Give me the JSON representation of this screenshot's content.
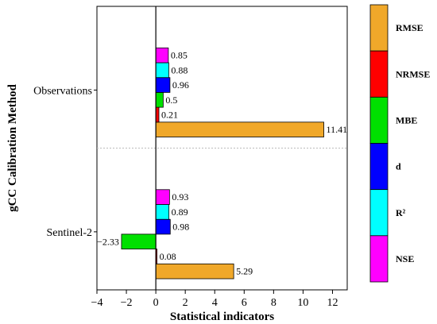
{
  "chart_data": {
    "type": "bar",
    "orientation": "horizontal",
    "categories": [
      "Observations",
      "Sentinel-2"
    ],
    "series": [
      {
        "name": "NSE",
        "color": "#ff00ff",
        "values": [
          0.85,
          0.93
        ],
        "labels": [
          "0.85",
          "0.93"
        ]
      },
      {
        "name": "R²",
        "color": "#00ffff",
        "values": [
          0.88,
          0.89
        ],
        "labels": [
          "0.88",
          "0.89"
        ]
      },
      {
        "name": "d",
        "color": "#0000ff",
        "values": [
          0.96,
          0.98
        ],
        "labels": [
          "0.96",
          "0.98"
        ]
      },
      {
        "name": "MBE",
        "color": "#00e000",
        "values": [
          0.5,
          -2.33
        ],
        "labels": [
          "0.5",
          "−2.33"
        ]
      },
      {
        "name": "NRMSE",
        "color": "#ff0000",
        "values": [
          0.21,
          0.08
        ],
        "labels": [
          "0.21",
          "0.08"
        ]
      },
      {
        "name": "RMSE",
        "color": "#f0a82a",
        "values": [
          11.41,
          5.29
        ],
        "labels": [
          "11.41",
          "5.29"
        ]
      }
    ],
    "xlabel": "Statistical indicators",
    "ylabel": "gCC Calibration Method",
    "xlim": [
      -4,
      13
    ],
    "xticks": [
      -4,
      -2,
      0,
      2,
      4,
      6,
      8,
      10,
      12
    ],
    "xtick_labels": [
      "−4",
      "−2",
      "0",
      "2",
      "4",
      "6",
      "8",
      "10",
      "12"
    ],
    "legend_position": "right",
    "legend_order": [
      "RMSE",
      "NRMSE",
      "MBE",
      "d",
      "R²",
      "NSE"
    ]
  }
}
